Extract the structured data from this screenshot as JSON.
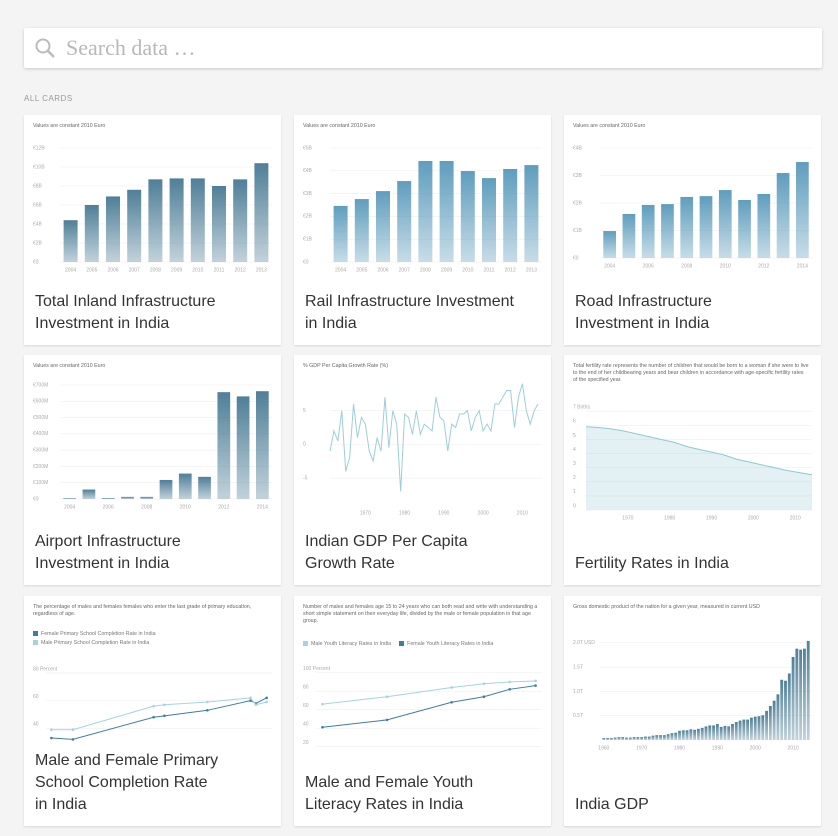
{
  "search": {
    "placeholder": "Search data …"
  },
  "section_label": "ALL CARDS",
  "cards": [
    {
      "title_lines": [
        "Total Inland Infrastructure",
        "Investment in India"
      ],
      "chart_data": {
        "type": "bar",
        "caption": "Values are constant 2010 Euro",
        "color": "#4f7f98",
        "categories": [
          "2004",
          "2005",
          "2006",
          "2007",
          "2008",
          "2009",
          "2010",
          "2011",
          "2012",
          "2013"
        ],
        "values": [
          4.4,
          6.0,
          6.9,
          7.6,
          8.7,
          8.8,
          8.8,
          8.0,
          8.7,
          10.4
        ],
        "ylim": [
          0,
          12
        ],
        "yticks": [
          {
            "value": 0,
            "label": "€0"
          },
          {
            "value": 2,
            "label": "€2B"
          },
          {
            "value": 4,
            "label": "€4B"
          },
          {
            "value": 6,
            "label": "€6B"
          },
          {
            "value": 8,
            "label": "€8B"
          },
          {
            "value": 10,
            "label": "€10B"
          },
          {
            "value": 12,
            "label": "€12B"
          }
        ]
      }
    },
    {
      "title_lines": [
        "Rail Infrastructure Investment",
        "in India"
      ],
      "chart_data": {
        "type": "bar",
        "caption": "Values are constant 2010 Euro",
        "color": "#5f9dbd",
        "categories": [
          "2004",
          "2005",
          "2006",
          "2007",
          "2008",
          "2009",
          "2010",
          "2011",
          "2012",
          "2013"
        ],
        "values": [
          2.46,
          2.76,
          3.11,
          3.55,
          4.43,
          4.43,
          3.99,
          3.68,
          4.08,
          4.25
        ],
        "ylim": [
          0,
          5
        ],
        "yticks": [
          {
            "value": 0,
            "label": "€0"
          },
          {
            "value": 1,
            "label": "€1B"
          },
          {
            "value": 2,
            "label": "€2B"
          },
          {
            "value": 3,
            "label": "€3B"
          },
          {
            "value": 4,
            "label": "€4B"
          },
          {
            "value": 5,
            "label": "€5B"
          }
        ]
      }
    },
    {
      "title_lines": [
        "Road Infrastructure",
        "Investment in India"
      ],
      "chart_data": {
        "type": "bar",
        "caption": "Values are constant 2010 Euro",
        "color": "#5f9dbd",
        "categories": [
          "2004",
          null,
          "2006",
          null,
          "2008",
          null,
          "2010",
          null,
          "2012",
          null,
          "2014"
        ],
        "values": [
          0.98,
          1.6,
          1.93,
          1.96,
          2.22,
          2.25,
          2.47,
          2.11,
          2.33,
          3.09,
          3.49
        ],
        "ylim": [
          0,
          4
        ],
        "yticks": [
          {
            "value": 0,
            "label": "€0"
          },
          {
            "value": 1,
            "label": "€1B"
          },
          {
            "value": 2,
            "label": "€2B"
          },
          {
            "value": 3,
            "label": "€3B"
          },
          {
            "value": 4,
            "label": "€4B"
          }
        ]
      }
    },
    {
      "title_lines": [
        "Airport Infrastructure",
        "Investment in India"
      ],
      "chart_data": {
        "type": "bar",
        "caption": "Values are constant 2010 Euro",
        "color": "#4f7f98",
        "categories": [
          "2004",
          null,
          "2006",
          null,
          "2008",
          null,
          "2010",
          null,
          "2012",
          null,
          "2014"
        ],
        "values": [
          5,
          58,
          6,
          13,
          13,
          117,
          156,
          136,
          656,
          630,
          662
        ],
        "ylim": [
          0,
          700
        ],
        "yticks": [
          {
            "value": 0,
            "label": "€0"
          },
          {
            "value": 100,
            "label": "€100M"
          },
          {
            "value": 200,
            "label": "€200M"
          },
          {
            "value": 300,
            "label": "€300M"
          },
          {
            "value": 400,
            "label": "€400M"
          },
          {
            "value": 500,
            "label": "€500M"
          },
          {
            "value": 600,
            "label": "€600M"
          },
          {
            "value": 700,
            "label": "€700M"
          }
        ]
      }
    },
    {
      "title_lines": [
        "Indian GDP Per Capita",
        "Growth Rate"
      ],
      "chart_data": {
        "type": "line",
        "caption": "% GDP Per Capita Growth Rate (%)",
        "color": "#9ccfd8",
        "x": [
          1961,
          1962,
          1963,
          1964,
          1965,
          1966,
          1967,
          1968,
          1969,
          1970,
          1971,
          1972,
          1973,
          1974,
          1975,
          1976,
          1977,
          1978,
          1979,
          1980,
          1981,
          1982,
          1983,
          1984,
          1985,
          1986,
          1987,
          1988,
          1989,
          1990,
          1991,
          1992,
          1993,
          1994,
          1995,
          1996,
          1997,
          1998,
          1999,
          2000,
          2001,
          2002,
          2003,
          2004,
          2005,
          2006,
          2007,
          2008,
          2009,
          2010,
          2011,
          2012,
          2013,
          2014
        ],
        "values": [
          -1,
          2,
          0.5,
          5,
          -4,
          -2,
          6,
          1,
          4,
          3,
          -1,
          -2.5,
          1,
          -1,
          7,
          -0.5,
          5,
          3,
          -7,
          4.5,
          4,
          1.5,
          5,
          1.5,
          3,
          2.5,
          2,
          7,
          4,
          3.5,
          -1,
          3,
          2.5,
          4.5,
          4.5,
          5,
          2,
          4,
          5,
          2,
          3,
          2,
          6,
          6,
          7,
          8,
          8,
          2.5,
          7,
          9,
          5,
          3,
          5,
          6
        ],
        "xlim": [
          1961,
          2015
        ],
        "xticks": [
          1970,
          1980,
          1990,
          2000,
          2010
        ],
        "ylim": [
          -9,
          10
        ],
        "yticks": [
          -5,
          0,
          5
        ]
      }
    },
    {
      "title_lines": [
        "Fertility Rates in India"
      ],
      "chart_data": {
        "type": "area",
        "caption": "Total fertility rate represents the number of children that would be born to a woman if she were to live to the end of her childbearing years and bear children in accordance with age-specific fertility rates of the specified year.",
        "color": "#8fc8d3",
        "x": [
          1960,
          1963,
          1966,
          1969,
          1972,
          1975,
          1978,
          1981,
          1984,
          1987,
          1990,
          1993,
          1996,
          1999,
          2002,
          2005,
          2008,
          2011,
          2014
        ],
        "values": [
          5.9,
          5.85,
          5.75,
          5.6,
          5.4,
          5.2,
          5.0,
          4.8,
          4.5,
          4.3,
          4.1,
          3.9,
          3.6,
          3.4,
          3.2,
          3.0,
          2.8,
          2.65,
          2.5
        ],
        "xlim": [
          1960,
          2014
        ],
        "xticks": [
          1970,
          1980,
          1990,
          2000,
          2010
        ],
        "ylim": [
          0,
          7.3
        ],
        "yticks": [
          0,
          1,
          2,
          3,
          4,
          5,
          6,
          {
            "value": 7,
            "label": "7 Births"
          }
        ]
      }
    },
    {
      "title_lines": [
        "Male and Female Primary",
        "School Completion Rate",
        "in India"
      ],
      "chart_data": {
        "type": "line",
        "caption": "The percentage of males and females females who enter the last grade of primary education, regardless of age.",
        "x": [
          1971,
          1975,
          1990,
          1992,
          2000,
          2008,
          2009,
          2011
        ],
        "series": [
          {
            "name": "Female Primary School Completion Rate in India",
            "color": "#3f7d9f",
            "values": [
              33,
              32,
              48,
              49,
              53,
              60,
              58,
              62
            ]
          },
          {
            "name": "Male Primary School Completion Rate in India",
            "color": "#a6d3dc",
            "values": [
              39,
              39,
              56,
              57,
              59,
              62,
              57,
              59
            ]
          }
        ],
        "xlim": [
          1970,
          2012
        ],
        "ylim": [
          20,
          85
        ],
        "yticks": [
          40,
          60,
          {
            "value": 80,
            "label": "80 Percent"
          }
        ]
      }
    },
    {
      "title_lines": [
        "Male and Female Youth",
        "Literacy Rates in India"
      ],
      "chart_data": {
        "type": "line",
        "caption": "Number of males and females age 15 to 24 years who can both read and write with understanding a short simple statement on their everyday life, divided by the male or female population in that age group.",
        "x": [
          1981,
          1991,
          2001,
          2006,
          2010,
          2014
        ],
        "series": [
          {
            "name": "Male Youth Literacy Rates in India",
            "color": "#a6d3dc",
            "values": [
              66,
              74,
              84,
              88,
              90,
              91
            ]
          },
          {
            "name": "Female Youth Literacy Rates in India",
            "color": "#3f7d9f",
            "values": [
              41,
              49,
              68,
              74,
              82,
              86
            ]
          }
        ],
        "xlim": [
          1980,
          2015
        ],
        "ylim": [
          10,
          105
        ],
        "yticks": [
          20,
          40,
          60,
          80,
          {
            "value": 100,
            "label": "100 Percent"
          }
        ]
      }
    },
    {
      "title_lines": [
        "India GDP"
      ],
      "chart_data": {
        "type": "bar",
        "caption": "Gross domestic product of the nation for a given year, measured in current USD",
        "color": "#4f7f98",
        "x": [
          1960,
          1961,
          1962,
          1963,
          1964,
          1965,
          1966,
          1967,
          1968,
          1969,
          1970,
          1971,
          1972,
          1973,
          1974,
          1975,
          1976,
          1977,
          1978,
          1979,
          1980,
          1981,
          1982,
          1983,
          1984,
          1985,
          1986,
          1987,
          1988,
          1989,
          1990,
          1991,
          1992,
          1993,
          1994,
          1995,
          1996,
          1997,
          1998,
          1999,
          2000,
          2001,
          2002,
          2003,
          2004,
          2005,
          2006,
          2007,
          2008,
          2009,
          2010,
          2011,
          2012,
          2013,
          2014
        ],
        "values": [
          0.04,
          0.04,
          0.04,
          0.05,
          0.06,
          0.06,
          0.05,
          0.05,
          0.06,
          0.06,
          0.06,
          0.07,
          0.07,
          0.09,
          0.1,
          0.1,
          0.1,
          0.12,
          0.14,
          0.15,
          0.19,
          0.2,
          0.2,
          0.22,
          0.21,
          0.23,
          0.25,
          0.28,
          0.3,
          0.3,
          0.33,
          0.27,
          0.29,
          0.28,
          0.33,
          0.37,
          0.4,
          0.42,
          0.42,
          0.46,
          0.48,
          0.49,
          0.51,
          0.6,
          0.7,
          0.81,
          0.94,
          1.24,
          1.22,
          1.37,
          1.71,
          1.88,
          1.86,
          1.88,
          2.04
        ],
        "xlim": [
          1959,
          2015
        ],
        "xticks": [
          1960,
          1970,
          1980,
          1990,
          2000,
          2010
        ],
        "ylim": [
          0,
          2.1
        ],
        "yticks": [
          {
            "value": 0.5,
            "label": "0.5T"
          },
          {
            "value": 1,
            "label": "1.0T"
          },
          {
            "value": 1.5,
            "label": "1.5T"
          },
          {
            "value": 2,
            "label": "2.0T USD"
          }
        ]
      }
    }
  ]
}
